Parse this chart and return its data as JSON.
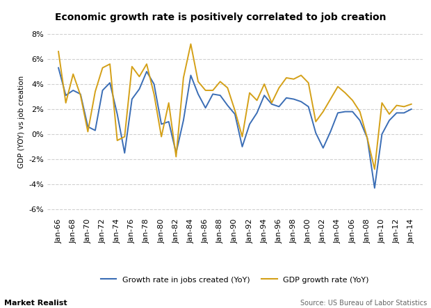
{
  "title": "Economic growth rate is positively correlated to job creation",
  "ylabel": "GDP (YOY) vs job creation",
  "ylim": [
    -6.5,
    8.5
  ],
  "yticks": [
    -6,
    -4,
    -2,
    0,
    2,
    4,
    6,
    8
  ],
  "ytick_labels": [
    "-6%",
    "-4%",
    "-2%",
    "0%",
    "2%",
    "4%",
    "6%",
    "8%"
  ],
  "background_color": "#ffffff",
  "plot_bg_color": "#ffffff",
  "grid_color": "#d0d0d0",
  "job_color": "#3a6db5",
  "gdp_color": "#d4a017",
  "source_text": "Source: US Bureau of Labor Statistics",
  "footer_text": "Market Realist",
  "legend_job": "Growth rate in jobs created (YoY)",
  "legend_gdp": "GDP growth rate (YoY)",
  "xtick_years": [
    1966,
    1968,
    1970,
    1972,
    1974,
    1976,
    1978,
    1980,
    1982,
    1984,
    1986,
    1988,
    1990,
    1992,
    1994,
    1996,
    1998,
    2000,
    2002,
    2004,
    2006,
    2008,
    2010,
    2012,
    2014
  ],
  "job_data": {
    "years": [
      1966,
      1967,
      1968,
      1969,
      1970,
      1971,
      1972,
      1973,
      1974,
      1975,
      1976,
      1977,
      1978,
      1979,
      1980,
      1981,
      1982,
      1983,
      1984,
      1985,
      1986,
      1987,
      1988,
      1989,
      1990,
      1991,
      1992,
      1993,
      1994,
      1995,
      1996,
      1997,
      1998,
      1999,
      2000,
      2001,
      2002,
      2003,
      2004,
      2005,
      2006,
      2007,
      2008,
      2009,
      2010,
      2011,
      2012,
      2013,
      2014
    ],
    "values": [
      5.3,
      3.1,
      3.5,
      3.2,
      0.6,
      0.3,
      3.5,
      4.1,
      1.6,
      -1.5,
      2.8,
      3.6,
      5.0,
      4.0,
      0.8,
      1.0,
      -1.5,
      1.1,
      4.7,
      3.2,
      2.1,
      3.2,
      3.1,
      2.3,
      1.6,
      -1.0,
      0.8,
      1.7,
      3.1,
      2.4,
      2.2,
      2.9,
      2.8,
      2.6,
      2.2,
      0.1,
      -1.1,
      0.2,
      1.7,
      1.8,
      1.8,
      1.1,
      -0.3,
      -4.3,
      0.0,
      1.1,
      1.7,
      1.7,
      2.0
    ]
  },
  "gdp_data": {
    "years": [
      1966,
      1967,
      1968,
      1969,
      1970,
      1971,
      1972,
      1973,
      1974,
      1975,
      1976,
      1977,
      1978,
      1979,
      1980,
      1981,
      1982,
      1983,
      1984,
      1985,
      1986,
      1987,
      1988,
      1989,
      1990,
      1991,
      1992,
      1993,
      1994,
      1995,
      1996,
      1997,
      1998,
      1999,
      2000,
      2001,
      2002,
      2003,
      2004,
      2005,
      2006,
      2007,
      2008,
      2009,
      2010,
      2011,
      2012,
      2013,
      2014
    ],
    "values": [
      6.6,
      2.5,
      4.8,
      3.1,
      0.2,
      3.4,
      5.3,
      5.6,
      -0.5,
      -0.2,
      5.4,
      4.6,
      5.6,
      3.2,
      -0.2,
      2.5,
      -1.8,
      4.5,
      7.2,
      4.2,
      3.5,
      3.5,
      4.2,
      3.7,
      1.9,
      -0.2,
      3.3,
      2.7,
      4.0,
      2.5,
      3.7,
      4.5,
      4.4,
      4.7,
      4.1,
      1.0,
      1.8,
      2.8,
      3.8,
      3.3,
      2.7,
      1.8,
      -0.3,
      -2.8,
      2.5,
      1.6,
      2.3,
      2.2,
      2.4
    ]
  }
}
